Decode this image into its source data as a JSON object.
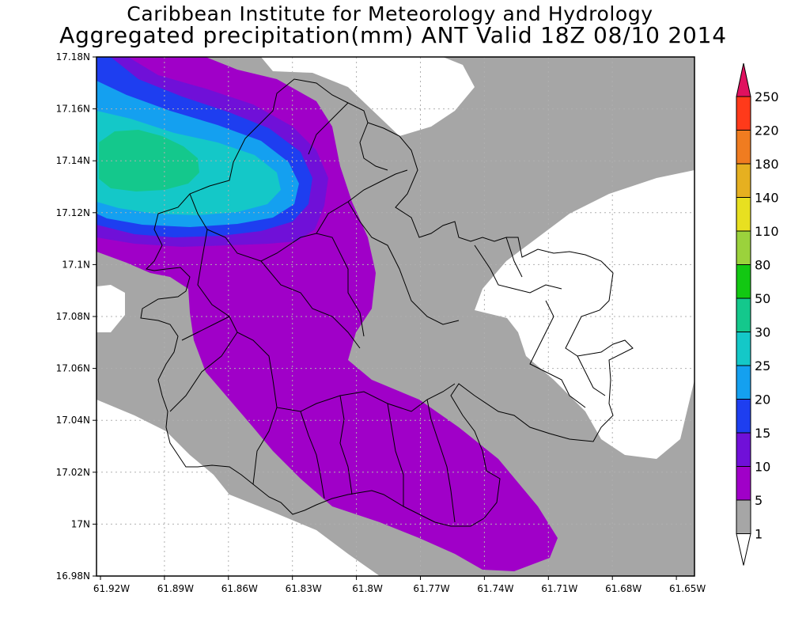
{
  "title": {
    "line1": "Caribbean Institute for Meteorology and Hydrology",
    "line2": "Aggregated precipitation(mm) ANT Valid 18Z 08/10 2014"
  },
  "map": {
    "lon_ticks": [
      "61.92W",
      "61.89W",
      "61.86W",
      "61.83W",
      "61.8W",
      "61.77W",
      "61.74W",
      "61.71W",
      "61.68W",
      "61.65W"
    ],
    "lat_ticks": [
      "17.18N",
      "17.16N",
      "17.14N",
      "17.12N",
      "17.1N",
      "17.08N",
      "17.06N",
      "17.04N",
      "17.02N",
      "17N",
      "16.98N"
    ],
    "grid": "dotted"
  },
  "colorbar": {
    "levels": [
      "250",
      "220",
      "180",
      "140",
      "110",
      "80",
      "50",
      "30",
      "25",
      "20",
      "15",
      "10",
      "5",
      "1"
    ],
    "colors": [
      "#e0115f",
      "#ff3a1a",
      "#f07c20",
      "#e6b020",
      "#e8e020",
      "#9bd23c",
      "#12c812",
      "#14c88c",
      "#14c8c8",
      "#14a0f0",
      "#1e3ef0",
      "#7010d8",
      "#a000c8",
      "#a6a6a6",
      "#ffffff"
    ]
  }
}
